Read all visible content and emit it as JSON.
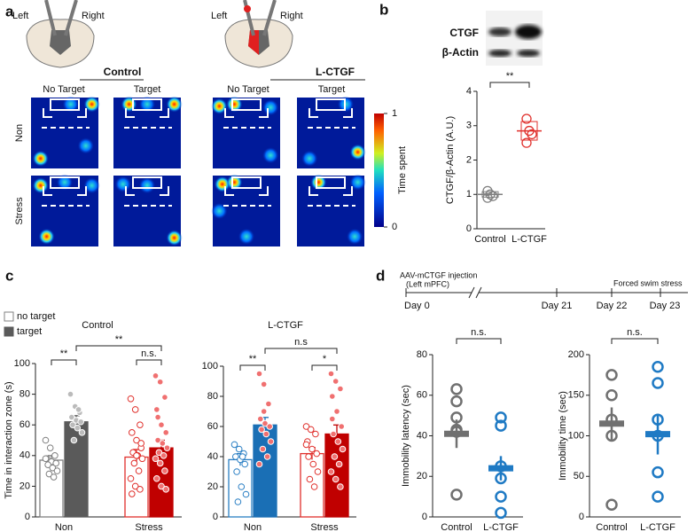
{
  "panel_labels": [
    "a",
    "b",
    "c",
    "d"
  ],
  "panel_a": {
    "hemispheres": [
      "Left",
      "Right"
    ],
    "groups": [
      {
        "title": "Control",
        "columns": [
          "No Target",
          "Target"
        ]
      },
      {
        "title": "L-CTGF",
        "columns": [
          "No Target",
          "Target"
        ]
      }
    ],
    "rows": [
      "Non",
      "Stress"
    ],
    "colorbar": {
      "label": "Time spent",
      "ticks": [
        1,
        0
      ]
    }
  },
  "blot": {
    "labels": [
      "CTGF",
      "β-Actin"
    ]
  },
  "timeline": {
    "injection": [
      "AAV-mCTGF injection",
      "(Left mPFC)"
    ],
    "days": [
      "Day 0",
      "Day 21",
      "Day 22",
      "Day 23"
    ],
    "event": "Forced swim stress"
  },
  "chart_data": [
    {
      "type": "dot",
      "ylabel": "CTGF/β-Actin (A.U.)",
      "categories": [
        "Control",
        "L-CTGF"
      ],
      "values": [
        1.0,
        2.85
      ],
      "errors": [
        0.08,
        0.27
      ],
      "points": [
        [
          1.1,
          1.0,
          0.95,
          0.9
        ],
        [
          3.2,
          2.85,
          2.75,
          2.5
        ]
      ],
      "colors": [
        "#808080",
        "#e0302c"
      ],
      "ylim": [
        0,
        4
      ],
      "yticks": [
        0,
        1,
        2,
        3,
        4
      ],
      "annotations": [
        "**"
      ]
    },
    {
      "type": "bar",
      "title": "Control",
      "ylabel": "Time in interaction zone (s)",
      "categories": [
        "Non",
        "Stress"
      ],
      "legend": "top-left",
      "series": [
        {
          "name": "no target",
          "colors": [
            "#ffffff",
            "#ffffff"
          ],
          "edge_colors": [
            "#808080",
            "#e0302c"
          ],
          "values": [
            37,
            39
          ],
          "errors": [
            3,
            5
          ],
          "points": [
            [
              50,
              45,
              40,
              38,
              36,
              35,
              34,
              32,
              30,
              28,
              26,
              38
            ],
            [
              77,
              70,
              60,
              55,
              50,
              45,
              42,
              40,
              38,
              35,
              30,
              25,
              20,
              18,
              15,
              40,
              48
            ]
          ]
        },
        {
          "name": "target",
          "colors": [
            "#5a5a5a",
            "#c00000"
          ],
          "edge_colors": [
            "#5a5a5a",
            "#c00000"
          ],
          "values": [
            62,
            45
          ],
          "errors": [
            4,
            5
          ],
          "points": [
            [
              80,
              72,
              68,
              65,
              63,
              62,
              60,
              58,
              55,
              50,
              70
            ],
            [
              92,
              88,
              78,
              70,
              60,
              55,
              50,
              48,
              45,
              42,
              40,
              38,
              35,
              30,
              25,
              20,
              18,
              65
            ]
          ]
        }
      ],
      "ylim": [
        0,
        100
      ],
      "yticks": [
        0,
        20,
        40,
        60,
        80,
        100
      ],
      "annotations": [
        "**",
        "**",
        "n.s."
      ]
    },
    {
      "type": "bar",
      "title": "L-CTGF",
      "categories": [
        "Non",
        "Stress"
      ],
      "series": [
        {
          "colors": [
            "#ffffff",
            "#ffffff"
          ],
          "edge_colors": [
            "#2a7fc4",
            "#e0302c"
          ],
          "values": [
            38,
            42
          ],
          "errors": [
            4,
            4
          ],
          "points": [
            [
              48,
              45,
              42,
              40,
              38,
              35,
              30,
              20,
              15,
              10,
              40
            ],
            [
              60,
              58,
              55,
              50,
              45,
              42,
              40,
              35,
              30,
              25,
              20,
              48
            ]
          ]
        },
        {
          "colors": [
            "#1a6fb5",
            "#c00000"
          ],
          "edge_colors": [
            "#1a6fb5",
            "#c00000"
          ],
          "values": [
            61,
            55
          ],
          "errors": [
            5,
            6
          ],
          "points": [
            [
              95,
              88,
              75,
              65,
              62,
              60,
              58,
              55,
              50,
              45,
              40,
              35,
              70
            ],
            [
              95,
              90,
              85,
              80,
              70,
              60,
              55,
              50,
              45,
              40,
              35,
              30,
              25,
              20,
              65
            ]
          ]
        }
      ],
      "ylim": [
        0,
        100
      ],
      "yticks": [
        0,
        20,
        40,
        60,
        80,
        100
      ],
      "annotations": [
        "**",
        "n.s",
        "*"
      ]
    },
    {
      "type": "dot",
      "ylabel": "Immobility latency (sec)",
      "categories": [
        "Control",
        "L-CTGF"
      ],
      "values": [
        41,
        24
      ],
      "errors": [
        7,
        6
      ],
      "points": [
        [
          63,
          57,
          49,
          43,
          42,
          11
        ],
        [
          49,
          45,
          25,
          19,
          10,
          2
        ]
      ],
      "colors": [
        "#707070",
        "#1f7ac4"
      ],
      "ylim": [
        0,
        80
      ],
      "yticks": [
        0,
        20,
        40,
        60,
        80
      ],
      "annotations": [
        "n.s."
      ]
    },
    {
      "type": "dot",
      "ylabel": "Immobility time (sec)",
      "categories": [
        "Control",
        "L-CTGF"
      ],
      "values": [
        115,
        102
      ],
      "errors": [
        20,
        25
      ],
      "points": [
        [
          175,
          150,
          120,
          100,
          15
        ],
        [
          185,
          165,
          120,
          100,
          55,
          25
        ]
      ],
      "colors": [
        "#707070",
        "#1f7ac4"
      ],
      "ylim": [
        0,
        200
      ],
      "yticks": [
        0,
        50,
        100,
        150,
        200
      ],
      "annotations": [
        "n.s."
      ]
    }
  ]
}
